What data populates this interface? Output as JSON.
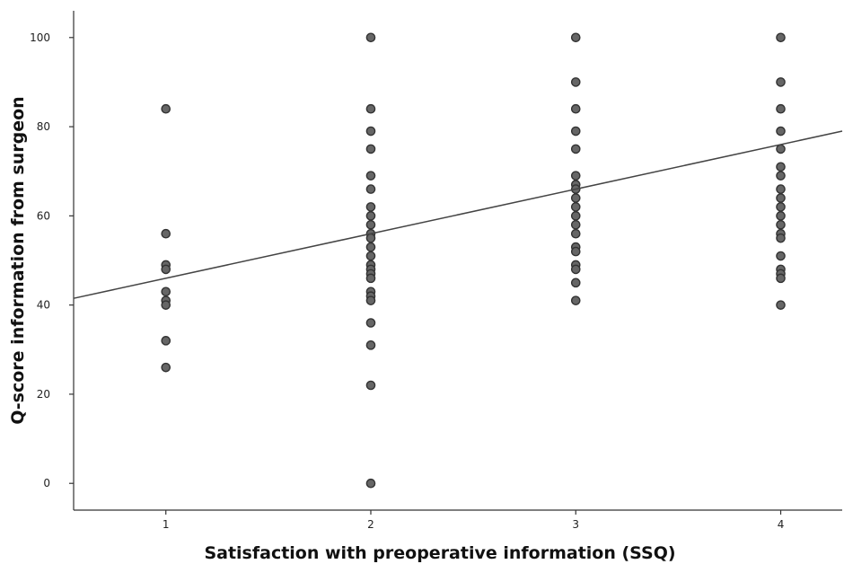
{
  "chart_data": {
    "type": "scatter",
    "title": "",
    "xlabel": "Satisfaction with preoperative information (SSQ)",
    "ylabel": "Q-score information from surgeon",
    "xticks": [
      1,
      2,
      3,
      4
    ],
    "yticks": [
      0,
      20,
      40,
      60,
      80,
      100
    ],
    "xlim": [
      0.55,
      4.3
    ],
    "ylim": [
      -6,
      106
    ],
    "grid": false,
    "legend": "none",
    "series": [
      {
        "points": [
          [
            1,
            84
          ],
          [
            1,
            56
          ],
          [
            1,
            49
          ],
          [
            1,
            48
          ],
          [
            1,
            43
          ],
          [
            1,
            41
          ],
          [
            1,
            40
          ],
          [
            1,
            32
          ],
          [
            1,
            26
          ],
          [
            2,
            100
          ],
          [
            2,
            84
          ],
          [
            2,
            79
          ],
          [
            2,
            75
          ],
          [
            2,
            69
          ],
          [
            2,
            66
          ],
          [
            2,
            62
          ],
          [
            2,
            60
          ],
          [
            2,
            58
          ],
          [
            2,
            56
          ],
          [
            2,
            55
          ],
          [
            2,
            53
          ],
          [
            2,
            51
          ],
          [
            2,
            49
          ],
          [
            2,
            48
          ],
          [
            2,
            47
          ],
          [
            2,
            46
          ],
          [
            2,
            43
          ],
          [
            2,
            42
          ],
          [
            2,
            41
          ],
          [
            2,
            36
          ],
          [
            2,
            31
          ],
          [
            2,
            22
          ],
          [
            2,
            0
          ],
          [
            3,
            100
          ],
          [
            3,
            90
          ],
          [
            3,
            84
          ],
          [
            3,
            79
          ],
          [
            3,
            75
          ],
          [
            3,
            69
          ],
          [
            3,
            67
          ],
          [
            3,
            66
          ],
          [
            3,
            64
          ],
          [
            3,
            62
          ],
          [
            3,
            60
          ],
          [
            3,
            58
          ],
          [
            3,
            56
          ],
          [
            3,
            53
          ],
          [
            3,
            52
          ],
          [
            3,
            49
          ],
          [
            3,
            48
          ],
          [
            3,
            45
          ],
          [
            3,
            41
          ],
          [
            4,
            100
          ],
          [
            4,
            90
          ],
          [
            4,
            84
          ],
          [
            4,
            79
          ],
          [
            4,
            75
          ],
          [
            4,
            71
          ],
          [
            4,
            69
          ],
          [
            4,
            66
          ],
          [
            4,
            64
          ],
          [
            4,
            62
          ],
          [
            4,
            60
          ],
          [
            4,
            58
          ],
          [
            4,
            56
          ],
          [
            4,
            55
          ],
          [
            4,
            51
          ],
          [
            4,
            48
          ],
          [
            4,
            47
          ],
          [
            4,
            46
          ],
          [
            4,
            40
          ]
        ]
      }
    ],
    "fit_line": {
      "intercept": 36.0,
      "slope": 10.0
    },
    "colors": {
      "point_fill": "#666666",
      "point_stroke": "#333333",
      "line": "#444444",
      "axis": "#333333"
    }
  }
}
